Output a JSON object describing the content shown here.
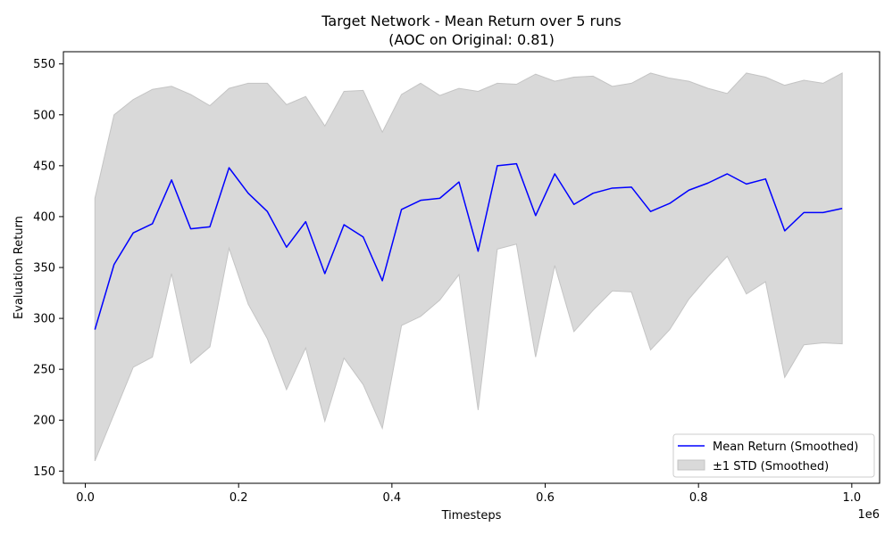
{
  "chart_data": {
    "type": "line",
    "title": "Target Network - Mean Return over 5 runs",
    "subtitle": "(AOC on Original: 0.81)",
    "xlabel": "Timesteps",
    "ylabel": "Evaluation Return",
    "x_offset_text": "1e6",
    "xlim": [
      -0.0286,
      1.0363
    ],
    "ylim": [
      138,
      562
    ],
    "xticks": [
      0,
      0.2,
      0.4,
      0.6,
      0.8,
      1.0
    ],
    "xtick_labels": [
      "0.0",
      "0.2",
      "0.4",
      "0.6",
      "0.8",
      "1.0"
    ],
    "yticks": [
      150,
      200,
      250,
      300,
      350,
      400,
      450,
      500,
      550
    ],
    "ytick_labels": [
      "150",
      "200",
      "250",
      "300",
      "350",
      "400",
      "450",
      "500",
      "550"
    ],
    "grid": false,
    "legend_position": "lower-right",
    "colors": {
      "mean": "#0000ff",
      "band_fill": "#d9d9d9",
      "band_edge": "#c4c4c4"
    },
    "x": [
      0.0125,
      0.0375,
      0.0625,
      0.0875,
      0.1125,
      0.1375,
      0.1625,
      0.1875,
      0.2125,
      0.2375,
      0.2625,
      0.2875,
      0.3125,
      0.3375,
      0.3625,
      0.3875,
      0.4125,
      0.4375,
      0.4625,
      0.4875,
      0.5125,
      0.5375,
      0.5625,
      0.5875,
      0.6125,
      0.6375,
      0.6625,
      0.6875,
      0.7125,
      0.7375,
      0.7625,
      0.7875,
      0.8125,
      0.8375,
      0.8625,
      0.8875,
      0.9125,
      0.9375,
      0.9625,
      0.9875
    ],
    "series": [
      {
        "name": "Mean Return (Smoothed)",
        "values": [
          289,
          353,
          384,
          393,
          436,
          388,
          390,
          448,
          423,
          405,
          370,
          395,
          344,
          392,
          380,
          337,
          407,
          416,
          418,
          434,
          366,
          450,
          452,
          401,
          442,
          412,
          423,
          428,
          429,
          405,
          413,
          426,
          433,
          442,
          432,
          437,
          386,
          404,
          404,
          408
        ]
      },
      {
        "name": "±1 STD (Smoothed)",
        "upper": [
          418,
          500,
          515,
          525,
          528,
          520,
          509,
          526,
          531,
          531,
          510,
          518,
          489,
          523,
          524,
          483,
          520,
          531,
          519,
          526,
          523,
          531,
          530,
          540,
          533,
          537,
          538,
          528,
          531,
          541,
          536,
          533,
          526,
          521,
          541,
          537,
          529,
          534,
          531,
          541
        ],
        "lower": [
          160,
          206,
          252,
          262,
          344,
          256,
          272,
          369,
          314,
          280,
          230,
          271,
          199,
          261,
          235,
          192,
          293,
          302,
          318,
          343,
          210,
          368,
          373,
          262,
          352,
          287,
          308,
          327,
          326,
          269,
          289,
          319,
          341,
          361,
          324,
          336,
          242,
          274,
          276,
          275
        ]
      }
    ]
  }
}
